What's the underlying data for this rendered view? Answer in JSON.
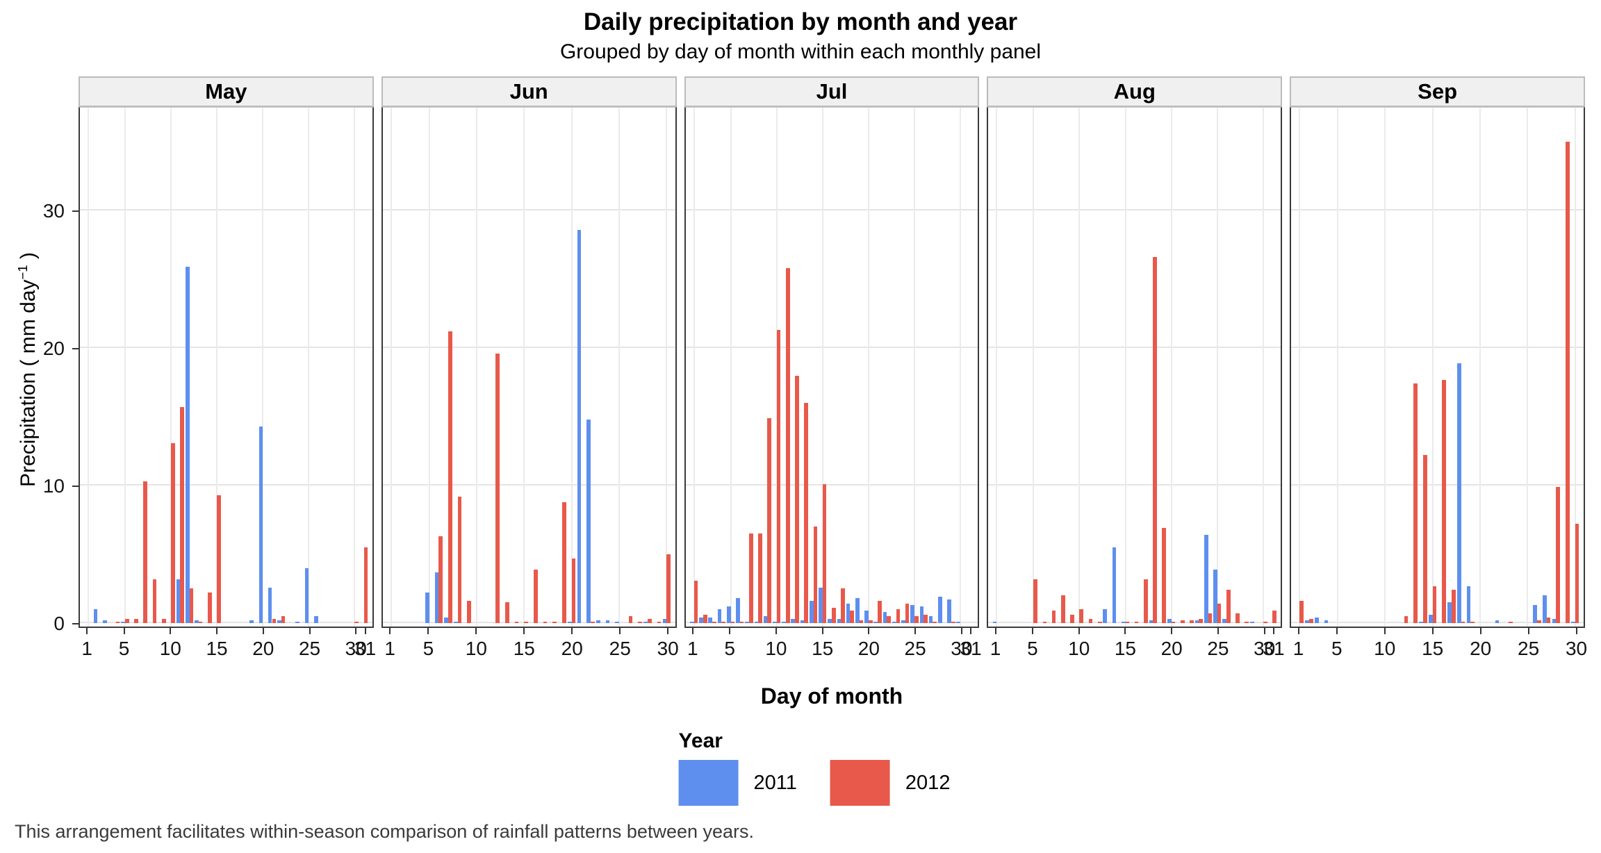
{
  "chart_data": {
    "type": "bar",
    "title": "Daily precipitation by month and year",
    "subtitle": "Grouped by day of month within each monthly panel",
    "xlabel": "Day of month",
    "ylabel": "Precipitation ( mm day⁻¹ )",
    "ylabel_parts": {
      "prefix": "Precipitation ( mm day",
      "sup": "−1",
      "suffix": " )"
    },
    "caption": "This arrangement facilitates within-season comparison of rainfall patterns between years.",
    "ylim": [
      0,
      37.5
    ],
    "yticks": [
      0,
      10,
      20,
      30
    ],
    "xticks": [
      1,
      5,
      10,
      15,
      20,
      25,
      30
    ],
    "grid": "major",
    "legend": {
      "title": "Year",
      "position": "bottom",
      "entries": [
        {
          "label": "2011",
          "color": "#5E8FEF"
        },
        {
          "label": "2012",
          "color": "#E8594B"
        }
      ]
    },
    "colors": {
      "series_2011": "#5E8FEF",
      "series_2012": "#E8594B",
      "gridline": "#E4E4E4",
      "strip_bg": "#F0F0F0",
      "strip_border": "#BBBBBB",
      "panel_border": "#3A3A3A"
    },
    "panels": [
      {
        "month": "May",
        "days": 31,
        "series": {
          "2011": {
            "2": 1.0,
            "3": 0.2,
            "5": 0.1,
            "11": 3.2,
            "12": 25.9,
            "13": 0.2,
            "19": 0.2,
            "20": 14.3,
            "21": 2.6,
            "22": 0.2,
            "24": 0.1,
            "25": 4.0,
            "26": 0.5
          },
          "2012": {
            "4": 0.1,
            "5": 0.3,
            "6": 0.3,
            "7": 10.3,
            "8": 3.2,
            "9": 0.3,
            "10": 13.1,
            "11": 15.7,
            "12": 2.5,
            "13": 0.1,
            "14": 2.2,
            "15": 9.3,
            "21": 0.3,
            "22": 0.5,
            "30": 0.1,
            "31": 5.5
          }
        }
      },
      {
        "month": "Jun",
        "days": 30,
        "series": {
          "2011": {
            "5": 2.2,
            "6": 3.7,
            "7": 0.4,
            "8": 0.1,
            "20": 0.1,
            "21": 28.6,
            "22": 14.8,
            "23": 0.2,
            "24": 0.2,
            "25": 0.1,
            "28": 0.1,
            "30": 0.3
          },
          "2012": {
            "6": 6.3,
            "7": 21.2,
            "8": 9.2,
            "9": 1.6,
            "12": 19.6,
            "13": 1.5,
            "14": 0.1,
            "15": 0.1,
            "16": 3.9,
            "17": 0.1,
            "18": 0.1,
            "19": 8.8,
            "20": 4.7,
            "22": 0.1,
            "26": 0.5,
            "27": 0.1,
            "28": 0.3,
            "29": 0.1,
            "30": 5.0
          }
        }
      },
      {
        "month": "Jul",
        "days": 31,
        "series": {
          "2011": {
            "1": 0.1,
            "2": 0.4,
            "3": 0.4,
            "4": 1.0,
            "5": 1.2,
            "6": 1.8,
            "7": 0.1,
            "8": 0.1,
            "9": 0.5,
            "10": 0.1,
            "11": 0.1,
            "12": 0.3,
            "13": 0.2,
            "14": 1.6,
            "15": 2.6,
            "16": 0.3,
            "17": 0.3,
            "18": 1.4,
            "19": 1.8,
            "20": 0.9,
            "21": 0.1,
            "22": 0.8,
            "23": 0.1,
            "24": 0.2,
            "25": 1.3,
            "26": 1.2,
            "27": 0.5,
            "28": 1.9,
            "29": 1.7,
            "30": 0.1
          },
          "2012": {
            "1": 3.1,
            "2": 0.6,
            "3": 0.1,
            "4": 0.1,
            "5": 0.1,
            "6": 0.1,
            "7": 6.5,
            "8": 6.5,
            "9": 14.9,
            "10": 21.3,
            "11": 25.8,
            "12": 18.0,
            "13": 16.0,
            "14": 7.0,
            "15": 10.1,
            "16": 1.1,
            "17": 2.5,
            "18": 0.9,
            "19": 0.2,
            "20": 0.2,
            "21": 1.6,
            "22": 0.5,
            "23": 1.0,
            "24": 1.4,
            "25": 0.5,
            "26": 0.6,
            "27": 0.1,
            "29": 0.1
          }
        }
      },
      {
        "month": "Aug",
        "days": 31,
        "series": {
          "2011": {
            "1": 0.1,
            "13": 1.0,
            "14": 5.5,
            "15": 0.1,
            "18": 0.2,
            "20": 0.3,
            "23": 0.2,
            "24": 6.4,
            "25": 3.9,
            "26": 0.3,
            "29": 0.1
          },
          "2012": {
            "5": 3.2,
            "6": 0.1,
            "7": 0.9,
            "8": 2.0,
            "9": 0.6,
            "10": 1.0,
            "11": 0.3,
            "12": 0.1,
            "15": 0.1,
            "16": 0.1,
            "17": 3.2,
            "18": 26.6,
            "19": 6.9,
            "20": 0.1,
            "21": 0.2,
            "22": 0.2,
            "23": 0.3,
            "24": 0.7,
            "25": 1.4,
            "26": 2.4,
            "27": 0.7,
            "28": 0.1,
            "30": 0.1,
            "31": 0.9
          }
        }
      },
      {
        "month": "Sep",
        "days": 30,
        "series": {
          "2011": {
            "2": 0.2,
            "3": 0.4,
            "4": 0.2,
            "14": 0.1,
            "15": 0.6,
            "17": 1.5,
            "18": 18.9,
            "19": 2.7,
            "22": 0.2,
            "26": 1.3,
            "27": 2.0,
            "28": 0.3,
            "30": 0.1
          },
          "2012": {
            "1": 1.6,
            "2": 0.3,
            "12": 0.5,
            "13": 17.4,
            "14": 12.2,
            "15": 2.7,
            "16": 17.7,
            "17": 2.4,
            "18": 0.1,
            "19": 0.1,
            "23": 0.1,
            "26": 0.2,
            "27": 0.4,
            "28": 9.9,
            "29": 35.0,
            "30": 7.2
          }
        }
      }
    ]
  }
}
